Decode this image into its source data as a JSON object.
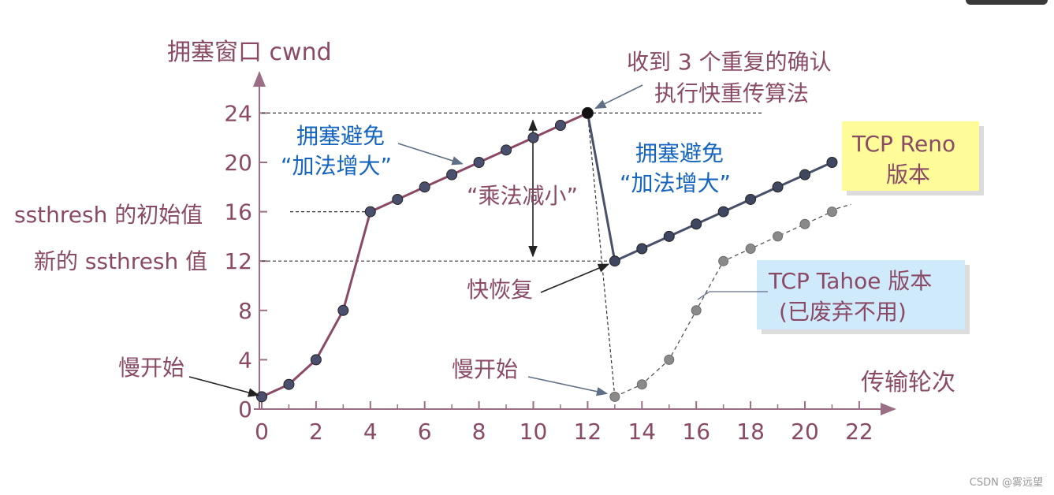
{
  "chart_data": {
    "type": "line",
    "ylabel": "拥塞窗口 cwnd",
    "xlabel": "传输轮次",
    "x_ticks": [
      0,
      2,
      4,
      6,
      8,
      10,
      12,
      14,
      16,
      18,
      20,
      22
    ],
    "y_ticks": [
      0,
      4,
      8,
      12,
      16,
      20,
      24
    ],
    "xlim": [
      0,
      23.5
    ],
    "ylim": [
      0,
      26
    ],
    "series": [
      {
        "name": "TCP Reno 版本",
        "x": [
          0,
          1,
          2,
          3,
          4,
          5,
          6,
          7,
          8,
          9,
          10,
          11,
          12,
          13,
          14,
          15,
          16,
          17,
          18,
          19,
          20,
          21
        ],
        "y": [
          1,
          2,
          4,
          8,
          16,
          17,
          18,
          19,
          20,
          21,
          22,
          23,
          24,
          12,
          13,
          14,
          15,
          16,
          17,
          18,
          19,
          20
        ],
        "color": "#8a4a66",
        "color_after_drop": "#48506a"
      },
      {
        "name": "TCP Tahoe 版本",
        "x": [
          13,
          14,
          15,
          16,
          17,
          18,
          19,
          20,
          21
        ],
        "y": [
          1,
          2,
          4,
          8,
          12,
          13,
          14,
          15,
          16
        ],
        "color": "#8a8a8a",
        "style": "dashed"
      }
    ],
    "annotations": {
      "ssthresh_initial": {
        "label": "ssthresh 的初始值",
        "value": 16
      },
      "ssthresh_new": {
        "label": "新的 ssthresh 值",
        "value": 12
      },
      "slow_start_1": "慢开始",
      "slow_start_2": "慢开始",
      "ca_1_line1": "拥塞避免",
      "ca_1_line2": "“加法增大”",
      "ca_2_line1": "拥塞避免",
      "ca_2_line2": "“加法增大”",
      "mult_dec": "“乘法减小”",
      "fast_recovery": "快恢复",
      "dup_ack_line1": "收到 3 个重复的确认",
      "dup_ack_line2": "执行快重传算法",
      "reno_box_line1": "TCP Reno",
      "reno_box_line2": "版本",
      "tahoe_box_line1": "TCP Tahoe 版本",
      "tahoe_box_line2": "(已废弃不用)"
    },
    "legend": "boxes at right"
  },
  "watermark": "CSDN @雾远望"
}
